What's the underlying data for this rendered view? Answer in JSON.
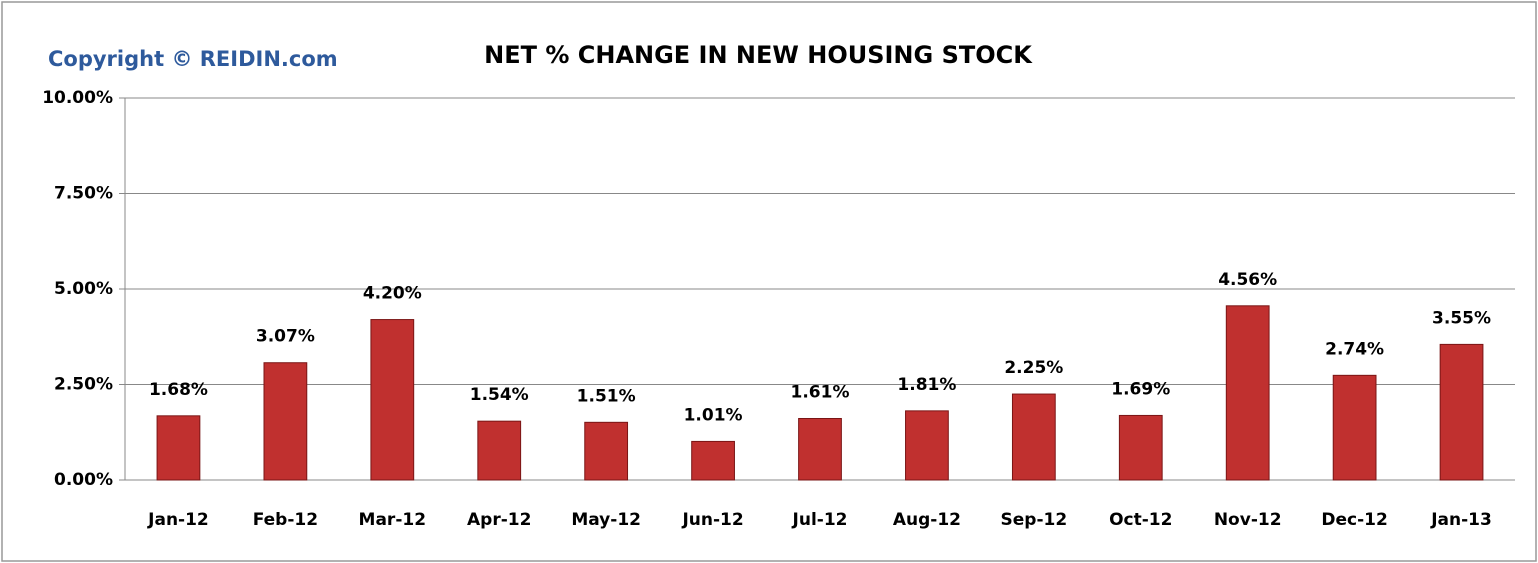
{
  "chart_data": {
    "type": "bar",
    "title": "NET % CHANGE IN NEW HOUSING STOCK",
    "annotation": "Copyright © REIDIN.com",
    "categories": [
      "Jan-12",
      "Feb-12",
      "Mar-12",
      "Apr-12",
      "May-12",
      "Jun-12",
      "Jul-12",
      "Aug-12",
      "Sep-12",
      "Oct-12",
      "Nov-12",
      "Dec-12",
      "Jan-13"
    ],
    "values": [
      1.68,
      3.07,
      4.2,
      1.54,
      1.51,
      1.01,
      1.61,
      1.81,
      2.25,
      1.69,
      4.56,
      2.74,
      3.55
    ],
    "value_labels": [
      "1.68%",
      "3.07%",
      "4.20%",
      "1.54%",
      "1.51%",
      "1.01%",
      "1.61%",
      "1.81%",
      "2.25%",
      "1.69%",
      "4.56%",
      "2.74%",
      "3.55%"
    ],
    "color": "#c0302f",
    "ylim": [
      0,
      10
    ],
    "yticks": [
      {
        "value": 0,
        "label": "0.00%"
      },
      {
        "value": 2.5,
        "label": "2.50%"
      },
      {
        "value": 5,
        "label": "5.00%"
      },
      {
        "value": 7.5,
        "label": "7.50%"
      },
      {
        "value": 10,
        "label": "10.00%"
      }
    ],
    "grid": true
  }
}
